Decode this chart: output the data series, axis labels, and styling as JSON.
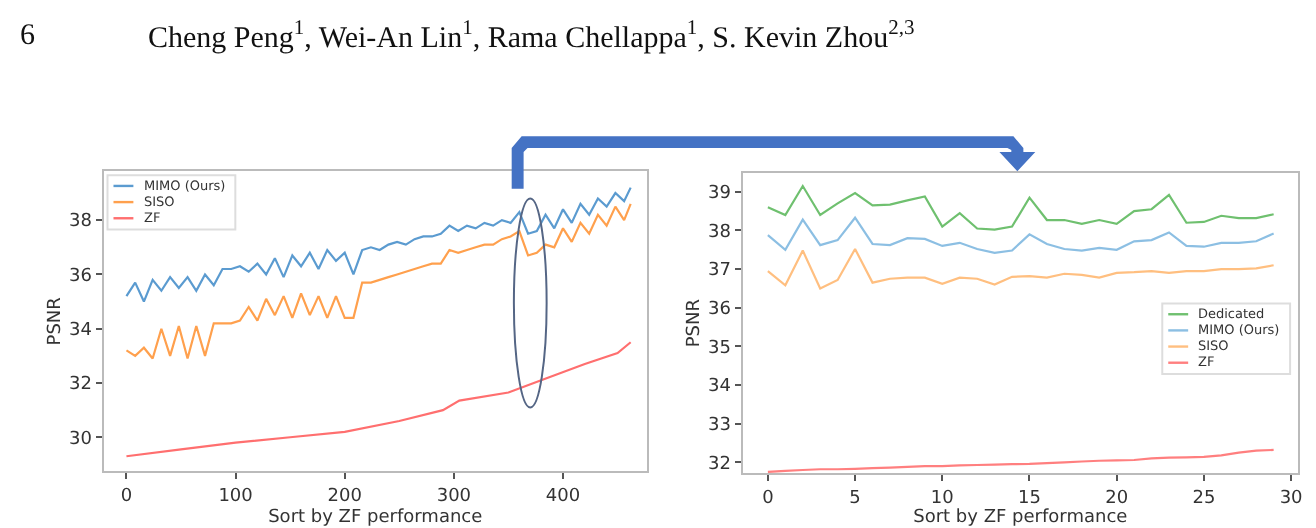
{
  "chart_data": [
    {
      "type": "line",
      "xlabel": "Sort by ZF performance",
      "ylabel": "PSNR",
      "xlim": [
        -21,
        477
      ],
      "xticks": [
        0,
        100,
        200,
        300,
        400
      ],
      "ylim": [
        28.75,
        39.8
      ],
      "yticks": [
        30,
        32,
        34,
        36,
        38
      ],
      "legend": "top left",
      "marker": "none",
      "line_style": "solid",
      "annotations": [
        "6",
        "Cheng Peng$^{1}$, Wei-An Lin$^{1}$, Rama Chellappa$^{1}$, S. Kevin Zhou$^{2,3}$"
      ],
      "series": [
        {
          "name": "MIMO (Ours)",
          "color": "#5b9bd0",
          "x": [
            0,
            8,
            16,
            24,
            32,
            40,
            48,
            56,
            64,
            72,
            80,
            88,
            96,
            104,
            112,
            120,
            128,
            136,
            144,
            152,
            160,
            168,
            176,
            184,
            192,
            200,
            208,
            216,
            224,
            232,
            240,
            248,
            256,
            264,
            272,
            280,
            288,
            296,
            304,
            312,
            320,
            328,
            336,
            344,
            352,
            360,
            368,
            376,
            384,
            392,
            400,
            408,
            416,
            424,
            432,
            440,
            448,
            456,
            462
          ],
          "values": [
            35.2,
            35.7,
            35.0,
            35.8,
            35.4,
            35.9,
            35.5,
            35.9,
            35.4,
            36.0,
            35.6,
            36.2,
            36.2,
            36.3,
            36.1,
            36.4,
            36.0,
            36.6,
            35.9,
            36.7,
            36.3,
            36.8,
            36.2,
            36.9,
            36.5,
            36.8,
            36.0,
            36.9,
            37.0,
            36.9,
            37.1,
            37.2,
            37.1,
            37.3,
            37.4,
            37.4,
            37.5,
            37.8,
            37.6,
            37.8,
            37.7,
            37.9,
            37.8,
            38.0,
            37.9,
            38.3,
            37.5,
            37.6,
            38.2,
            37.7,
            38.4,
            37.9,
            38.6,
            38.2,
            38.8,
            38.5,
            39.0,
            38.7,
            39.2
          ]
        },
        {
          "name": "SISO",
          "color": "#ffa04d",
          "x": [
            0,
            8,
            16,
            24,
            32,
            40,
            48,
            56,
            64,
            72,
            80,
            88,
            96,
            104,
            112,
            120,
            128,
            136,
            144,
            152,
            160,
            168,
            176,
            184,
            192,
            200,
            208,
            216,
            224,
            232,
            240,
            248,
            256,
            264,
            272,
            280,
            288,
            296,
            304,
            312,
            320,
            328,
            336,
            344,
            352,
            360,
            368,
            376,
            384,
            392,
            400,
            408,
            416,
            424,
            432,
            440,
            448,
            456,
            462
          ],
          "values": [
            33.2,
            33.0,
            33.3,
            32.9,
            34.0,
            33.0,
            34.1,
            32.9,
            34.1,
            33.0,
            34.2,
            34.2,
            34.2,
            34.3,
            34.8,
            34.3,
            35.1,
            34.5,
            35.2,
            34.4,
            35.3,
            34.5,
            35.2,
            34.4,
            35.2,
            34.4,
            34.4,
            35.7,
            35.7,
            35.8,
            35.9,
            36.0,
            36.1,
            36.2,
            36.3,
            36.4,
            36.4,
            36.9,
            36.8,
            36.9,
            37.0,
            37.1,
            37.1,
            37.3,
            37.4,
            37.6,
            36.7,
            36.8,
            37.1,
            37.0,
            37.7,
            37.2,
            37.9,
            37.5,
            38.2,
            37.8,
            38.5,
            38.0,
            38.6
          ]
        },
        {
          "name": "ZF",
          "color": "#ff6f6f",
          "x": [
            0,
            50,
            100,
            150,
            200,
            250,
            290,
            305,
            350,
            380,
            420,
            450,
            462
          ],
          "values": [
            29.3,
            29.55,
            29.8,
            30.0,
            30.2,
            30.6,
            31.0,
            31.35,
            31.65,
            32.1,
            32.7,
            33.1,
            33.5
          ]
        }
      ]
    },
    {
      "type": "line",
      "xlabel": "Sort by ZF performance",
      "ylabel": "PSNR",
      "xlim": [
        -1.45,
        30.4
      ],
      "xticks": [
        0,
        5,
        10,
        15,
        20,
        25,
        30
      ],
      "ylim": [
        31.72,
        39.48
      ],
      "yticks": [
        32,
        33,
        34,
        35,
        36,
        37,
        38,
        39
      ],
      "legend": "right",
      "marker": "none",
      "line_style": "solid",
      "x": [
        0,
        1,
        2,
        3,
        4,
        5,
        6,
        7,
        8,
        9,
        10,
        11,
        12,
        13,
        14,
        15,
        16,
        17,
        18,
        19,
        20,
        21,
        22,
        23,
        24,
        25,
        26,
        27,
        28,
        29
      ],
      "series": [
        {
          "name": "Dedicated",
          "color": "#6fc06f",
          "values": [
            38.6,
            38.4,
            39.15,
            38.4,
            38.7,
            38.97,
            38.65,
            38.67,
            38.78,
            38.88,
            38.1,
            38.45,
            38.05,
            38.02,
            38.1,
            38.85,
            38.27,
            38.27,
            38.17,
            38.27,
            38.17,
            38.5,
            38.55,
            38.92,
            38.2,
            38.22,
            38.38,
            38.32,
            38.32,
            38.42
          ]
        },
        {
          "name": "MIMO (Ours)",
          "color": "#8cbfe3",
          "values": [
            37.88,
            37.5,
            38.28,
            37.62,
            37.75,
            38.33,
            37.65,
            37.62,
            37.8,
            37.78,
            37.6,
            37.68,
            37.52,
            37.42,
            37.48,
            37.9,
            37.65,
            37.52,
            37.48,
            37.55,
            37.5,
            37.72,
            37.75,
            37.95,
            37.6,
            37.58,
            37.68,
            37.68,
            37.72,
            37.92
          ]
        },
        {
          "name": "SISO",
          "color": "#ffbf80",
          "values": [
            36.95,
            36.58,
            37.48,
            36.5,
            36.72,
            37.52,
            36.65,
            36.75,
            36.78,
            36.78,
            36.62,
            36.78,
            36.75,
            36.6,
            36.8,
            36.82,
            36.78,
            36.88,
            36.85,
            36.78,
            36.9,
            36.92,
            36.95,
            36.9,
            36.95,
            36.95,
            37.0,
            37.0,
            37.02,
            37.1
          ]
        },
        {
          "name": "ZF",
          "color": "#ff7f7f",
          "values": [
            31.75,
            31.78,
            31.8,
            31.82,
            31.82,
            31.83,
            31.85,
            31.86,
            31.88,
            31.9,
            31.9,
            31.92,
            31.93,
            31.94,
            31.95,
            31.96,
            31.98,
            32.0,
            32.02,
            32.04,
            32.05,
            32.06,
            32.1,
            32.12,
            32.13,
            32.14,
            32.18,
            32.25,
            32.3,
            32.32
          ]
        }
      ]
    }
  ]
}
